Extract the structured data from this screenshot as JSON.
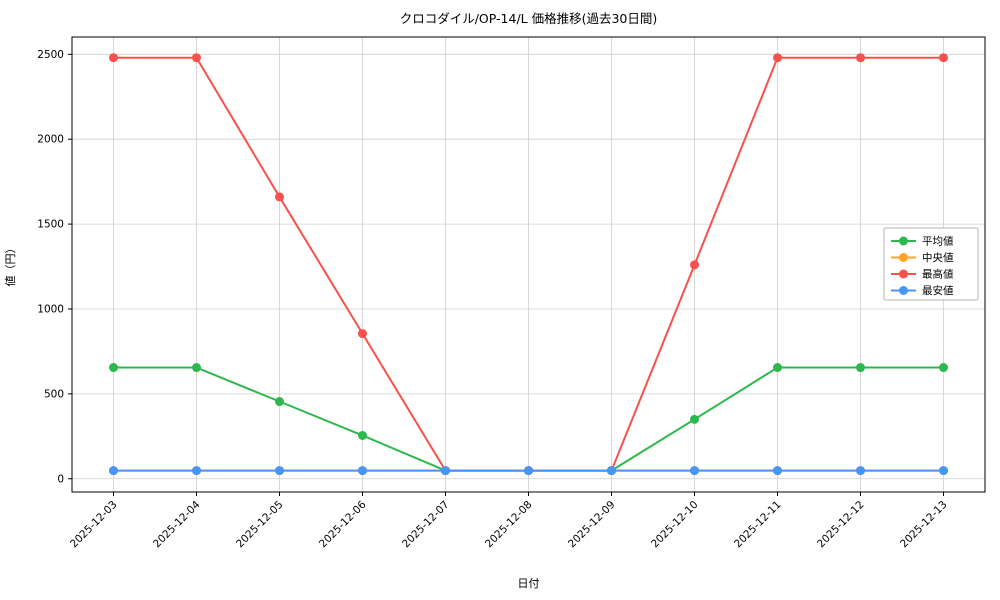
{
  "chart_data": {
    "type": "line",
    "title": "クロコダイル/OP-14/L 価格推移(過去30日間)",
    "xlabel": "日付",
    "ylabel": "値（円）",
    "categories": [
      "2025-12-03",
      "2025-12-04",
      "2025-12-05",
      "2025-12-06",
      "2025-12-07",
      "2025-12-08",
      "2025-12-09",
      "2025-12-10",
      "2025-12-11",
      "2025-12-12",
      "2025-12-13"
    ],
    "series": [
      {
        "key": "average",
        "name": "平均値",
        "color": "#2db84d",
        "values": [
          655,
          655,
          455,
          255,
          48,
          48,
          48,
          350,
          655,
          655,
          655
        ]
      },
      {
        "key": "median",
        "name": "中央値",
        "color": "#ffa424",
        "values": [
          48,
          48,
          48,
          48,
          48,
          48,
          48,
          48,
          48,
          48,
          48
        ]
      },
      {
        "key": "max",
        "name": "最高値",
        "color": "#f8514d",
        "values": [
          2480,
          2480,
          1660,
          855,
          48,
          48,
          48,
          1260,
          2480,
          2480,
          2480
        ]
      },
      {
        "key": "min",
        "name": "最安値",
        "color": "#4596f7",
        "values": [
          48,
          48,
          48,
          48,
          48,
          48,
          48,
          48,
          48,
          48,
          48
        ]
      }
    ],
    "yticks": [
      0,
      500,
      1000,
      1500,
      2000,
      2500
    ],
    "ylim": [
      -78,
      2602
    ],
    "grid": true,
    "grid_color": "#cfcfcf",
    "axis_color": "#000000",
    "legend_position": "center-right",
    "background": "#ffffff"
  }
}
